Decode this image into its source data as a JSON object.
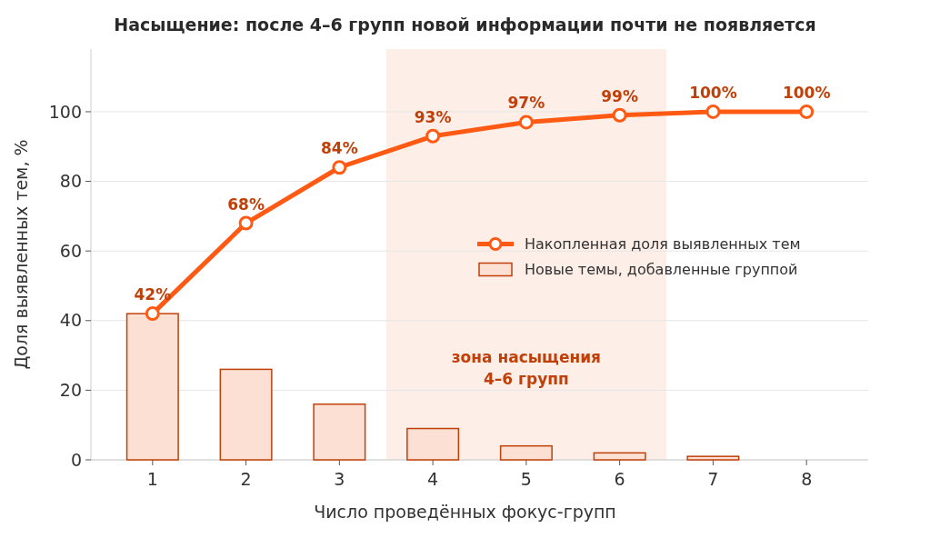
{
  "chart_data": {
    "type": "bar",
    "title": "Насыщение: после 4–6 групп новой информации почти не появляется",
    "xlabel": "Число проведённых фокус-групп",
    "ylabel": "Доля выявленных тем, %",
    "x": [
      1,
      2,
      3,
      4,
      5,
      6,
      7,
      8
    ],
    "xlim": [
      0.34,
      8.66
    ],
    "xticks": [
      1,
      2,
      3,
      4,
      5,
      6,
      7,
      8
    ],
    "ylim": [
      0,
      118
    ],
    "yticks": [
      0,
      20,
      40,
      60,
      80,
      100
    ],
    "grid": "y",
    "legend": "right",
    "marker": "circle",
    "series": [
      {
        "name": "Накопленная доля выявленных тем",
        "type": "line",
        "color": "#ff5a14",
        "values": [
          42,
          68,
          84,
          93,
          97,
          99,
          100,
          100
        ],
        "value_labels": [
          "42%",
          "68%",
          "84%",
          "93%",
          "97%",
          "99%",
          "100%",
          "100%"
        ]
      },
      {
        "name": "Новые темы, добавленные группой",
        "color": "#fde0d4",
        "values": [
          42,
          26,
          16,
          9,
          4,
          2,
          1,
          0
        ]
      }
    ],
    "bands": [
      {
        "axis": "x",
        "from": 3.5,
        "to": 6.5,
        "label": "зона насыщения\n4–6 групп",
        "color": "#fdeee8"
      }
    ]
  }
}
